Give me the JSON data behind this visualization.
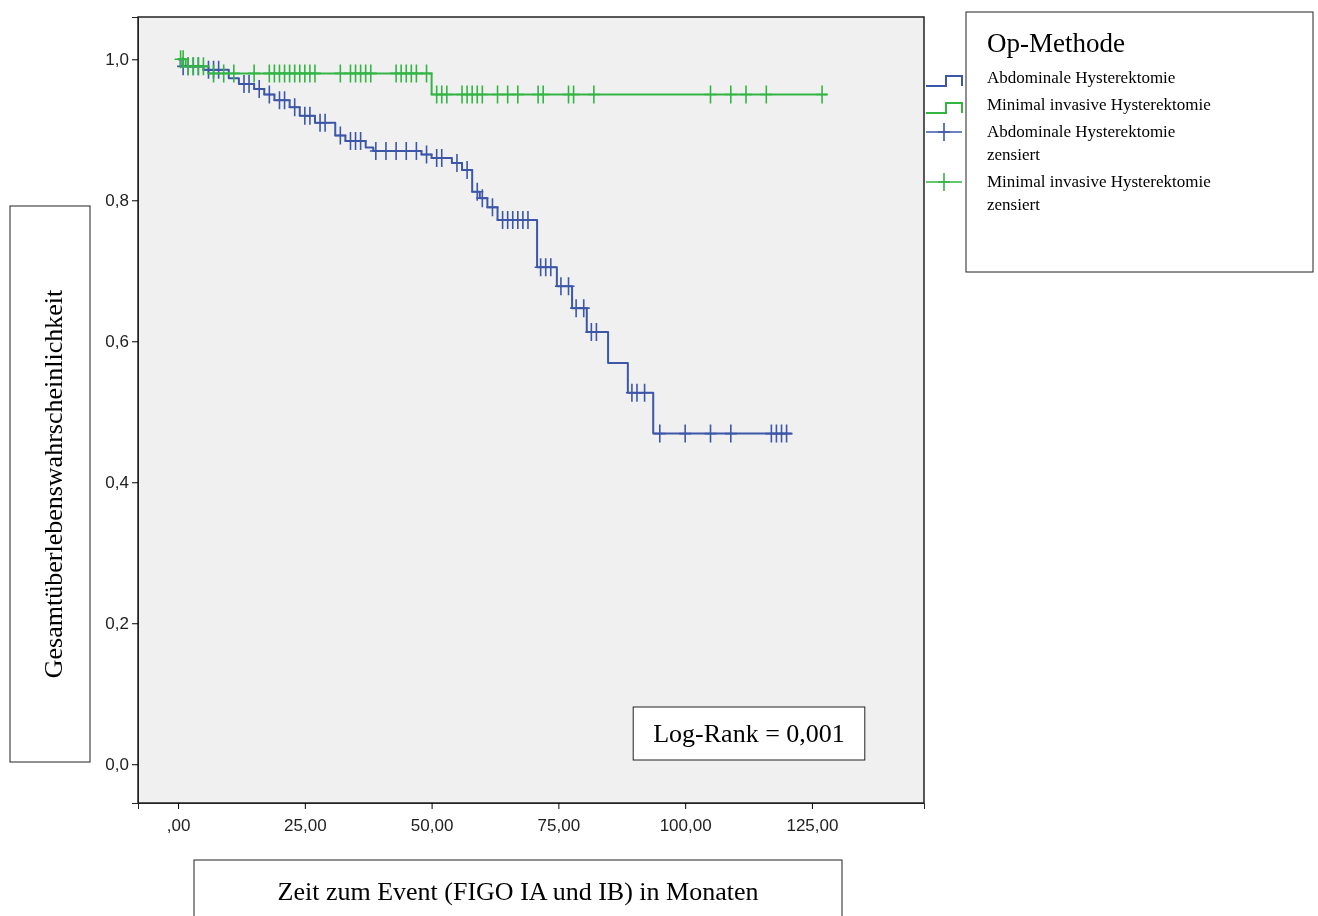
{
  "chart_data": {
    "type": "step",
    "xlabel": "Zeit zum Event (FIGO IA und IB) in Monaten",
    "ylabel": "Gesamtüberlebenswahrscheinlichkeit",
    "legend_title": "Op-Methode",
    "legend": "right",
    "annotations": [
      "Log-Rank = 0,001"
    ],
    "xlim": [
      -7.9,
      147.1
    ],
    "ylim": [
      -0.055,
      1.06
    ],
    "xticks": [
      {
        "value": 0,
        "label": ",00"
      },
      {
        "value": 25,
        "label": "25,00"
      },
      {
        "value": 50,
        "label": "50,00"
      },
      {
        "value": 75,
        "label": "75,00"
      },
      {
        "value": 100,
        "label": "100,00"
      },
      {
        "value": 125,
        "label": "125,00"
      }
    ],
    "yticks": [
      {
        "value": 0,
        "label": "0,0"
      },
      {
        "value": 0.2,
        "label": "0,2"
      },
      {
        "value": 0.4,
        "label": "0,4"
      },
      {
        "value": 0.6,
        "label": "0,6"
      },
      {
        "value": 0.8,
        "label": "0,8"
      },
      {
        "value": 1.0,
        "label": "1,0"
      }
    ],
    "grid": false,
    "series": [
      {
        "name": "Abdominale Hysterektomie",
        "type": "step",
        "color": "#3d57a8",
        "x": [
          0,
          0.5,
          5,
          10,
          12,
          15,
          17,
          19,
          22,
          24,
          27,
          31,
          33,
          37,
          38.5,
          48,
          50,
          54,
          56,
          58,
          59.5,
          61,
          63,
          70.8,
          74.7,
          77.7,
          80.6,
          84.8,
          88.7,
          93.7,
          121
        ],
        "values": [
          1.0,
          0.99,
          0.985,
          0.973,
          0.965,
          0.958,
          0.95,
          0.942,
          0.932,
          0.92,
          0.91,
          0.892,
          0.884,
          0.875,
          0.87,
          0.865,
          0.86,
          0.853,
          0.843,
          0.812,
          0.803,
          0.79,
          0.772,
          0.705,
          0.678,
          0.647,
          0.613,
          0.569,
          0.527,
          0.469,
          0.469
        ]
      },
      {
        "name": "Minimal invasive Hysterektomie",
        "type": "step",
        "color": "#33b544",
        "x": [
          0,
          1.5,
          6,
          50,
          128
        ],
        "values": [
          1.0,
          0.99,
          0.98,
          0.95,
          0.95
        ]
      },
      {
        "name": "Abdominale Hysterektomie zensiert",
        "type": "scatter",
        "marker": "cross",
        "color": "#3d57a8",
        "x": [
          1,
          2,
          3,
          4,
          6,
          7,
          8,
          13,
          14,
          16,
          18,
          20,
          21,
          23,
          25,
          26,
          28,
          29,
          32,
          34,
          35,
          36,
          39,
          41,
          43,
          45,
          47,
          49,
          51,
          52,
          55,
          57,
          59,
          60,
          62,
          64,
          65,
          66,
          67,
          68,
          69,
          71.5,
          72.5,
          73.5,
          75.5,
          77,
          78.5,
          80,
          81.5,
          82.5,
          89.5,
          90.5,
          92,
          95,
          100,
          105,
          109,
          117,
          118,
          119,
          120
        ],
        "values": [
          0.99,
          0.99,
          0.99,
          0.99,
          0.985,
          0.985,
          0.985,
          0.965,
          0.965,
          0.958,
          0.95,
          0.942,
          0.942,
          0.932,
          0.92,
          0.92,
          0.91,
          0.91,
          0.892,
          0.884,
          0.884,
          0.884,
          0.87,
          0.87,
          0.87,
          0.87,
          0.87,
          0.865,
          0.86,
          0.86,
          0.853,
          0.843,
          0.812,
          0.803,
          0.79,
          0.772,
          0.772,
          0.772,
          0.772,
          0.772,
          0.772,
          0.705,
          0.705,
          0.705,
          0.678,
          0.678,
          0.647,
          0.647,
          0.613,
          0.613,
          0.527,
          0.527,
          0.527,
          0.469,
          0.469,
          0.469,
          0.469,
          0.469,
          0.469,
          0.469,
          0.469
        ]
      },
      {
        "name": "Minimal invasive Hysterektomie zensiert",
        "type": "scatter",
        "marker": "cross",
        "color": "#33b544",
        "x": [
          0.5,
          1,
          2,
          3,
          4,
          5,
          7,
          9,
          11,
          15,
          18,
          19,
          20,
          21,
          22,
          23,
          24,
          25,
          26,
          27,
          32,
          34,
          35,
          36,
          37,
          38,
          43,
          44,
          45,
          46,
          47,
          49,
          51,
          52,
          53,
          56,
          57,
          58,
          59,
          60,
          63,
          65,
          67,
          71,
          72,
          77,
          78,
          82,
          105,
          109,
          112,
          116,
          127
        ],
        "values": [
          1.0,
          1.0,
          0.99,
          0.99,
          0.99,
          0.99,
          0.98,
          0.98,
          0.98,
          0.98,
          0.98,
          0.98,
          0.98,
          0.98,
          0.98,
          0.98,
          0.98,
          0.98,
          0.98,
          0.98,
          0.98,
          0.98,
          0.98,
          0.98,
          0.98,
          0.98,
          0.98,
          0.98,
          0.98,
          0.98,
          0.98,
          0.98,
          0.95,
          0.95,
          0.95,
          0.95,
          0.95,
          0.95,
          0.95,
          0.95,
          0.95,
          0.95,
          0.95,
          0.95,
          0.95,
          0.95,
          0.95,
          0.95,
          0.95,
          0.95,
          0.95,
          0.95,
          0.95
        ]
      }
    ]
  }
}
